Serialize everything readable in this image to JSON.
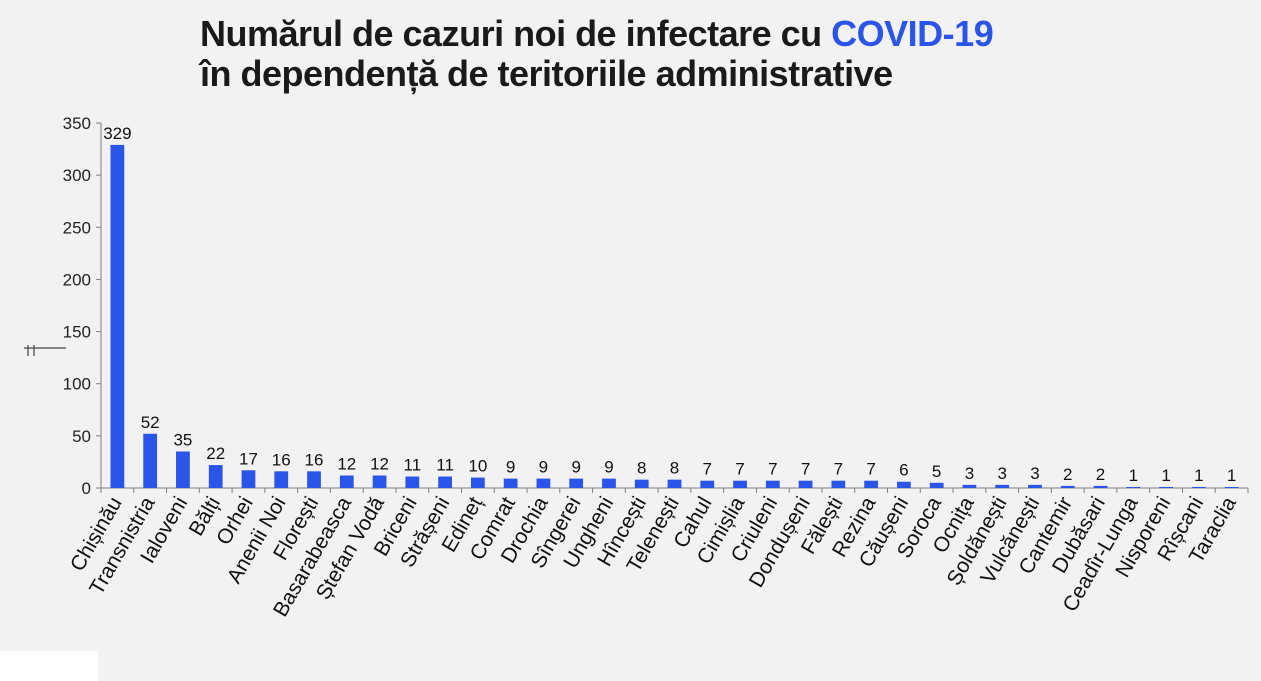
{
  "header": {
    "title_line1": "Numărul de cazuri noi de infectare cu ",
    "title_accent": "COVID-19",
    "title_line2": "în dependență de teritoriile administrative"
  },
  "colors": {
    "bar": "#2b54e8",
    "accent": "#2b54e8",
    "axis": "#7f7f7f",
    "text": "#1a1a1a"
  },
  "chart_data": {
    "type": "bar",
    "title": "Numărul de cazuri noi de infectare cu COVID-19 în dependență de teritoriile administrative",
    "xlabel": "",
    "ylabel": "",
    "ylim": [
      0,
      350
    ],
    "yticks": [
      0,
      50,
      100,
      150,
      200,
      250,
      300,
      350
    ],
    "grid": false,
    "legend": "none",
    "categories": [
      "Chișinău",
      "Transnistria",
      "Ialoveni",
      "Bălți",
      "Orhei",
      "Anenii Noi",
      "Florești",
      "Basarabeasca",
      "Ștefan Vodă",
      "Briceni",
      "Strășeni",
      "Edineț",
      "Comrat",
      "Drochia",
      "Sîngerei",
      "Ungheni",
      "Hîncești",
      "Telenești",
      "Cahul",
      "Cimișlia",
      "Criuleni",
      "Dondușeni",
      "Fălești",
      "Rezina",
      "Căușeni",
      "Soroca",
      "Ocnița",
      "Șoldănești",
      "Vulcănești",
      "Cantemir",
      "Dubăsari",
      "Ceadîr-Lunga",
      "Nisporeni",
      "Rîșcani",
      "Taraclia"
    ],
    "values": [
      329,
      52,
      35,
      22,
      17,
      16,
      16,
      12,
      12,
      11,
      11,
      10,
      9,
      9,
      9,
      9,
      8,
      8,
      7,
      7,
      7,
      7,
      7,
      7,
      6,
      5,
      3,
      3,
      3,
      2,
      2,
      1,
      1,
      1,
      1
    ]
  }
}
